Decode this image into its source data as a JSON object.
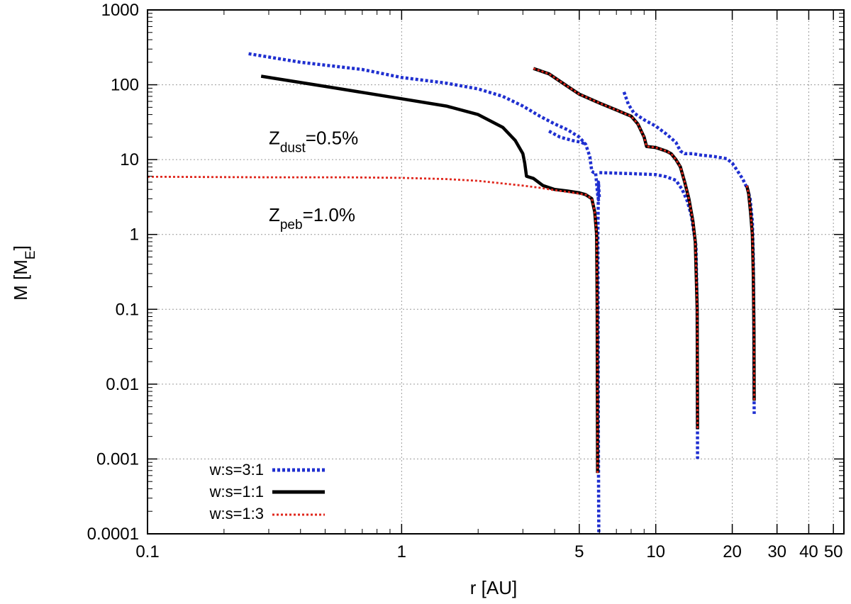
{
  "chart_data": {
    "type": "line",
    "xscale": "log",
    "yscale": "log",
    "xlim": [
      0.1,
      55
    ],
    "ylim": [
      0.0001,
      1000
    ],
    "grid": true,
    "xlabel": "r [AU]",
    "ylabel": {
      "main": "M [M",
      "sub": "E",
      "close": "]"
    },
    "xticks": [
      {
        "v": 0.1,
        "label": "0.1"
      },
      {
        "v": 1,
        "label": "1"
      },
      {
        "v": 5,
        "label": "5"
      },
      {
        "v": 10,
        "label": "10"
      },
      {
        "v": 20,
        "label": "20"
      },
      {
        "v": 30,
        "label": "30"
      },
      {
        "v": 40,
        "label": "40"
      },
      {
        "v": 50,
        "label": "50"
      }
    ],
    "yticks": [
      {
        "v": 0.0001,
        "label": "0.0001"
      },
      {
        "v": 0.001,
        "label": "0.001"
      },
      {
        "v": 0.01,
        "label": "0.01"
      },
      {
        "v": 0.1,
        "label": "0.1"
      },
      {
        "v": 1,
        "label": "1"
      },
      {
        "v": 10,
        "label": "10"
      },
      {
        "v": 100,
        "label": "100"
      },
      {
        "v": 1000,
        "label": "1000"
      }
    ],
    "annotations": [
      {
        "id": "zdust",
        "main": "Z",
        "sub": "dust",
        "rest": "=0.5%",
        "x": 0.3,
        "y": 16
      },
      {
        "id": "zpeb",
        "main": "Z",
        "sub": "peb",
        "rest": "=1.0%",
        "x": 0.3,
        "y": 1.5
      }
    ],
    "legend": {
      "placement": "bottom-left"
    },
    "series": [
      {
        "name": "w:s=3:1",
        "color": "#1f2fd0",
        "style": "dotted",
        "tracks": [
          [
            [
              0.25,
              260
            ],
            [
              0.4,
              200
            ],
            [
              0.7,
              160
            ],
            [
              1.0,
              125
            ],
            [
              1.5,
              105
            ],
            [
              2.0,
              88
            ],
            [
              2.5,
              70
            ],
            [
              3.0,
              52
            ],
            [
              3.5,
              38
            ],
            [
              4.0,
              30
            ],
            [
              4.5,
              25
            ],
            [
              5.0,
              20
            ],
            [
              5.3,
              16
            ],
            [
              5.5,
              11
            ],
            [
              5.6,
              7
            ],
            [
              5.7,
              6.7
            ],
            [
              5.8,
              6.7
            ],
            [
              5.9,
              3.5
            ],
            [
              5.95,
              2.9
            ],
            [
              6.0,
              3.0
            ],
            [
              5.95,
              5.0
            ],
            [
              5.92,
              1.0
            ],
            [
              5.93,
              0.1
            ],
            [
              5.94,
              0.01
            ],
            [
              5.95,
              0.001
            ],
            [
              5.96,
              0.0002
            ],
            [
              5.97,
              0.0001
            ]
          ],
          [
            [
              3.8,
              24
            ],
            [
              4.2,
              20
            ],
            [
              4.7,
              18
            ],
            [
              5.1,
              17
            ],
            [
              5.3,
              16
            ]
          ],
          [
            [
              7.5,
              80
            ],
            [
              7.8,
              55
            ],
            [
              8.2,
              42
            ],
            [
              9.0,
              34
            ],
            [
              10.0,
              28
            ],
            [
              11.0,
              22
            ],
            [
              12.0,
              17
            ],
            [
              12.5,
              13
            ],
            [
              13.0,
              12
            ],
            [
              14.0,
              12
            ],
            [
              15.0,
              11.5
            ],
            [
              17.0,
              11
            ],
            [
              19.0,
              10.3
            ],
            [
              20.0,
              9
            ],
            [
              21.0,
              7
            ],
            [
              22.0,
              5.5
            ],
            [
              23.0,
              4.0
            ],
            [
              23.5,
              3.0
            ],
            [
              24.0,
              1.5
            ],
            [
              24.2,
              0.5
            ],
            [
              24.3,
              0.1
            ],
            [
              24.35,
              0.01
            ],
            [
              24.4,
              0.004
            ]
          ],
          [
            [
              6.0,
              6.7
            ],
            [
              7.0,
              6.6
            ],
            [
              8.0,
              6.5
            ],
            [
              9.0,
              6.4
            ],
            [
              10.0,
              6.3
            ],
            [
              11.0,
              5.9
            ],
            [
              12.0,
              5.3
            ],
            [
              12.7,
              4.0
            ],
            [
              13.3,
              2.8
            ],
            [
              13.8,
              1.8
            ],
            [
              14.1,
              1.1
            ],
            [
              14.4,
              0.7
            ],
            [
              14.55,
              0.1
            ],
            [
              14.58,
              0.01
            ],
            [
              14.6,
              0.001
            ]
          ]
        ]
      },
      {
        "name": "w:s=1:1",
        "color": "#000000",
        "style": "solid",
        "tracks": [
          [
            [
              0.28,
              130
            ],
            [
              0.5,
              95
            ],
            [
              1.0,
              65
            ],
            [
              1.5,
              52
            ],
            [
              2.0,
              40
            ],
            [
              2.5,
              27
            ],
            [
              2.8,
              18
            ],
            [
              3.0,
              12
            ],
            [
              3.05,
              9
            ],
            [
              3.1,
              6
            ],
            [
              3.3,
              5.6
            ],
            [
              3.6,
              4.5
            ],
            [
              4.0,
              4.0
            ],
            [
              4.5,
              3.8
            ],
            [
              5.0,
              3.6
            ],
            [
              5.3,
              3.4
            ],
            [
              5.6,
              3.0
            ],
            [
              5.75,
              2.0
            ],
            [
              5.85,
              1.0
            ],
            [
              5.88,
              0.1
            ],
            [
              5.89,
              0.01
            ],
            [
              5.9,
              0.001
            ],
            [
              5.9,
              0.00065
            ]
          ],
          [
            [
              3.3,
              165
            ],
            [
              3.8,
              140
            ],
            [
              4.5,
              95
            ],
            [
              5.0,
              75
            ],
            [
              6.0,
              57
            ],
            [
              7.0,
              46
            ],
            [
              8.0,
              38
            ],
            [
              8.5,
              30
            ],
            [
              9.0,
              20
            ],
            [
              9.2,
              15
            ],
            [
              10.0,
              14.5
            ],
            [
              11.0,
              13
            ],
            [
              11.5,
              12
            ],
            [
              12.0,
              10
            ],
            [
              12.5,
              8
            ],
            [
              13.0,
              5
            ],
            [
              13.5,
              3
            ],
            [
              14.0,
              1.5
            ],
            [
              14.3,
              0.8
            ],
            [
              14.55,
              0.1
            ],
            [
              14.58,
              0.01
            ],
            [
              14.6,
              0.0025
            ]
          ],
          [
            [
              22.8,
              4.5
            ],
            [
              23.2,
              3.5
            ],
            [
              23.6,
              2.0
            ],
            [
              24.0,
              1.0
            ],
            [
              24.2,
              0.3
            ],
            [
              24.35,
              0.05
            ],
            [
              24.4,
              0.006
            ]
          ]
        ]
      },
      {
        "name": "w:s=1:3",
        "color": "#e0281e",
        "style": "dotted",
        "tracks": [
          [
            [
              0.1,
              5.9
            ],
            [
              0.3,
              5.8
            ],
            [
              0.6,
              5.8
            ],
            [
              1.0,
              5.7
            ],
            [
              1.5,
              5.5
            ],
            [
              2.0,
              5.2
            ],
            [
              2.5,
              4.8
            ],
            [
              3.0,
              4.5
            ],
            [
              3.5,
              4.2
            ],
            [
              4.0,
              3.9
            ],
            [
              4.5,
              3.7
            ],
            [
              5.0,
              3.5
            ],
            [
              5.3,
              3.4
            ],
            [
              5.6,
              3.0
            ],
            [
              5.75,
              2.0
            ],
            [
              5.85,
              1.0
            ],
            [
              5.88,
              0.1
            ],
            [
              5.89,
              0.01
            ],
            [
              5.9,
              0.001
            ],
            [
              5.9,
              0.00065
            ]
          ],
          [
            [
              3.3,
              165
            ],
            [
              3.8,
              140
            ],
            [
              4.5,
              95
            ],
            [
              5.0,
              75
            ],
            [
              6.0,
              57
            ],
            [
              7.0,
              46
            ],
            [
              8.0,
              38
            ],
            [
              8.5,
              30
            ],
            [
              9.0,
              20
            ],
            [
              9.2,
              15
            ],
            [
              10.0,
              14.5
            ],
            [
              11.0,
              13
            ],
            [
              11.5,
              12
            ],
            [
              12.0,
              10
            ],
            [
              12.5,
              8
            ],
            [
              13.0,
              5
            ],
            [
              13.5,
              3
            ],
            [
              14.0,
              1.5
            ],
            [
              14.3,
              0.8
            ],
            [
              14.55,
              0.1
            ],
            [
              14.58,
              0.01
            ],
            [
              14.6,
              0.0025
            ]
          ],
          [
            [
              22.8,
              4.5
            ],
            [
              23.2,
              3.5
            ],
            [
              23.6,
              2.0
            ],
            [
              24.0,
              1.0
            ],
            [
              24.2,
              0.3
            ],
            [
              24.35,
              0.05
            ],
            [
              24.4,
              0.006
            ]
          ]
        ]
      }
    ]
  }
}
